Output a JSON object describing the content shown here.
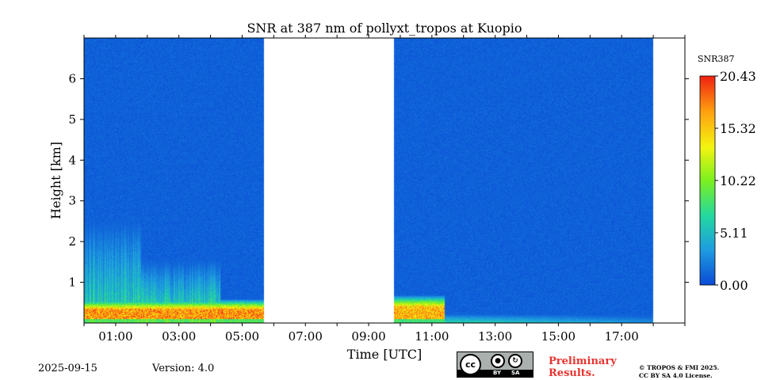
{
  "chart_data": {
    "type": "heatmap",
    "title": "SNR at 387 nm of pollyxt_tropos at Kuopio",
    "xlabel": "Time [UTC]",
    "ylabel": "Height [km]",
    "x_range_hours": [
      0,
      19
    ],
    "y_range_km": [
      0,
      7
    ],
    "x_ticks": [
      {
        "value": 1,
        "label": "01:00"
      },
      {
        "value": 3,
        "label": "03:00"
      },
      {
        "value": 5,
        "label": "05:00"
      },
      {
        "value": 7,
        "label": "07:00"
      },
      {
        "value": 9,
        "label": "09:00"
      },
      {
        "value": 11,
        "label": "11:00"
      },
      {
        "value": 13,
        "label": "13:00"
      },
      {
        "value": 15,
        "label": "15:00"
      },
      {
        "value": 17,
        "label": "17:00"
      }
    ],
    "y_ticks": [
      {
        "value": 1,
        "label": "1"
      },
      {
        "value": 2,
        "label": "2"
      },
      {
        "value": 3,
        "label": "3"
      },
      {
        "value": 4,
        "label": "4"
      },
      {
        "value": 5,
        "label": "5"
      },
      {
        "value": 6,
        "label": "6"
      }
    ],
    "data_segments_hours": [
      [
        0,
        5.7
      ],
      [
        9.8,
        18
      ]
    ],
    "colorbar": {
      "label": "SNR387",
      "min": 0.0,
      "max": 20.43,
      "ticks": [
        {
          "value": 0.0,
          "label": "0.00"
        },
        {
          "value": 5.11,
          "label": "5.11"
        },
        {
          "value": 10.22,
          "label": "10.22"
        },
        {
          "value": 15.32,
          "label": "15.32"
        },
        {
          "value": 20.43,
          "label": "20.43"
        }
      ],
      "colors": [
        "#0a4bd6",
        "#1e9de0",
        "#22d8a0",
        "#7cf020",
        "#f4f410",
        "#ffa010",
        "#f02010"
      ]
    },
    "features": [
      {
        "type": "high-snr-band",
        "start": 0.0,
        "end": 5.7,
        "top_km": 0.6,
        "peak": 17
      },
      {
        "type": "mid-layer",
        "start": 1.8,
        "end": 4.3,
        "top_km": 1.7,
        "peak": 8
      },
      {
        "type": "mid-layer",
        "start": 0.0,
        "end": 1.8,
        "top_km": 2.8,
        "peak": 7
      },
      {
        "type": "high-snr-band",
        "start": 9.8,
        "end": 11.4,
        "top_km": 0.7,
        "peak": 16
      },
      {
        "type": "low-layer",
        "start": 11.4,
        "end": 18.0,
        "top_km": 0.25,
        "peak": 7
      }
    ]
  },
  "footer": {
    "date": "2025-09-15",
    "version": "Version: 4.0",
    "preliminary_line1": "Preliminary",
    "preliminary_line2": "Results.",
    "copyright_line1": "© TROPOS & FMI 2025.",
    "copyright_line2": "CC BY SA 4.0 License.",
    "cc_logo": {
      "cc": "cc",
      "by": "BY",
      "sa": "SA"
    }
  }
}
